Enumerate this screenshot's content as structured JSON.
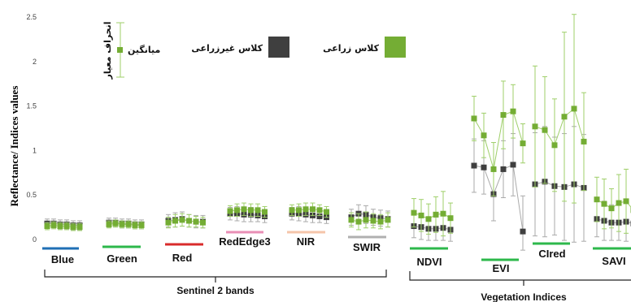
{
  "chart_data": {
    "type": "scatter",
    "ylabel": "Reflectance/ Indices values",
    "ylim": [
      -0.1,
      2.55
    ],
    "yticks": [
      "2.5",
      "2",
      "1.5",
      "1",
      "0.5",
      "0"
    ],
    "ytick_values": [
      2.5,
      2,
      1.5,
      1,
      0.5,
      0
    ],
    "legend": {
      "agri_label": "کلاس زراعی",
      "nonagri_label": "کلاس غیرزراعی",
      "mean_label": "میانگین",
      "sd_label": "انحراف معیار"
    },
    "colors": {
      "agri": "#74ad34",
      "nonagri": "#3f3f3f",
      "sd_line": "#9fcf6a",
      "gray_line": "#aaaaaa"
    },
    "sections": [
      {
        "label": "Sentinel 2 bands"
      },
      {
        "label": "Vegetation Indices"
      }
    ],
    "groups": [
      {
        "label": "Blue",
        "underline_color": "#1f6fb5",
        "series": [
          {
            "values": [
              0.15,
              0.16,
              0.15,
              0.15,
              0.14,
              0.14
            ],
            "err": [
              0.04,
              0.04,
              0.04,
              0.04,
              0.04,
              0.04
            ]
          },
          {
            "values": [
              0.18,
              0.18,
              0.17,
              0.17,
              0.16,
              0.16
            ],
            "err": [
              0.05,
              0.05,
              0.05,
              0.05,
              0.05,
              0.05
            ]
          }
        ]
      },
      {
        "label": "Green",
        "underline_color": "#2db84b",
        "series": [
          {
            "values": [
              0.17,
              0.18,
              0.17,
              0.17,
              0.16,
              0.16
            ],
            "err": [
              0.04,
              0.04,
              0.04,
              0.04,
              0.04,
              0.04
            ]
          },
          {
            "values": [
              0.19,
              0.19,
              0.18,
              0.18,
              0.17,
              0.17
            ],
            "err": [
              0.05,
              0.05,
              0.05,
              0.05,
              0.05,
              0.05
            ]
          }
        ]
      },
      {
        "label": "Red",
        "underline_color": "#d92b2b",
        "series": [
          {
            "values": [
              0.19,
              0.21,
              0.22,
              0.21,
              0.2,
              0.19
            ],
            "err": [
              0.06,
              0.07,
              0.07,
              0.07,
              0.06,
              0.06
            ]
          },
          {
            "values": [
              0.21,
              0.22,
              0.23,
              0.21,
              0.2,
              0.2
            ],
            "err": [
              0.07,
              0.08,
              0.08,
              0.07,
              0.07,
              0.07
            ]
          }
        ]
      },
      {
        "label": "RedEdge3",
        "underline_color": "#e98fb6",
        "series": [
          {
            "values": [
              0.32,
              0.33,
              0.34,
              0.33,
              0.33,
              0.31
            ],
            "err": [
              0.06,
              0.07,
              0.07,
              0.07,
              0.07,
              0.06
            ]
          },
          {
            "values": [
              0.29,
              0.29,
              0.28,
              0.28,
              0.27,
              0.26
            ],
            "err": [
              0.07,
              0.08,
              0.08,
              0.08,
              0.07,
              0.07
            ]
          }
        ]
      },
      {
        "label": "NIR",
        "underline_color": "#f5c5aa",
        "series": [
          {
            "values": [
              0.33,
              0.33,
              0.34,
              0.34,
              0.33,
              0.31
            ],
            "err": [
              0.06,
              0.07,
              0.07,
              0.07,
              0.06,
              0.06
            ]
          },
          {
            "values": [
              0.29,
              0.29,
              0.28,
              0.27,
              0.26,
              0.25
            ],
            "err": [
              0.07,
              0.08,
              0.08,
              0.08,
              0.07,
              0.07
            ]
          }
        ]
      },
      {
        "label": "SWIR",
        "underline_color": "#b0b0b0",
        "series": [
          {
            "values": [
              0.22,
              0.2,
              0.22,
              0.21,
              0.2,
              0.22
            ],
            "err": [
              0.08,
              0.09,
              0.09,
              0.08,
              0.08,
              0.08
            ]
          },
          {
            "values": [
              0.25,
              0.29,
              0.28,
              0.25,
              0.24,
              0.23
            ],
            "err": [
              0.09,
              0.1,
              0.1,
              0.09,
              0.09,
              0.09
            ]
          }
        ]
      },
      {
        "label": "NDVI",
        "underline_color": "#2db84b",
        "series": [
          {
            "values": [
              0.3,
              0.27,
              0.23,
              0.28,
              0.29,
              0.24
            ],
            "err": [
              0.16,
              0.18,
              0.17,
              0.2,
              0.25,
              0.17
            ]
          },
          {
            "values": [
              0.15,
              0.14,
              0.12,
              0.12,
              0.13,
              0.11
            ],
            "err": [
              0.13,
              0.14,
              0.13,
              0.13,
              0.14,
              0.13
            ]
          }
        ]
      },
      {
        "label": "EVI",
        "underline_color": "#2db84b",
        "series": [
          {
            "values": [
              1.36,
              1.17,
              0.79,
              1.4,
              1.44,
              1.08
            ],
            "err": [
              0.25,
              0.25,
              0.3,
              0.38,
              0.3,
              0.22
            ]
          },
          {
            "values": [
              0.83,
              0.81,
              0.51,
              0.79,
              0.84,
              0.09
            ],
            "err": [
              0.3,
              0.3,
              0.3,
              0.32,
              0.35,
              0.4
            ]
          }
        ]
      },
      {
        "label": "CIred",
        "underline_color": "#2db84b",
        "series": [
          {
            "values": [
              1.27,
              1.23,
              1.06,
              1.38,
              1.47,
              1.1
            ],
            "err": [
              0.68,
              0.6,
              0.52,
              0.95,
              1.06,
              0.55
            ]
          },
          {
            "values": [
              0.62,
              0.65,
              0.6,
              0.59,
              0.62,
              0.58
            ],
            "err": [
              0.58,
              0.62,
              0.55,
              0.6,
              0.65,
              0.6
            ]
          }
        ]
      },
      {
        "label": "SAVI",
        "underline_color": "#2db84b",
        "series": [
          {
            "values": [
              0.45,
              0.4,
              0.35,
              0.41,
              0.43,
              0.33
            ],
            "err": [
              0.25,
              0.28,
              0.22,
              0.32,
              0.36,
              0.27
            ]
          },
          {
            "values": [
              0.23,
              0.21,
              0.19,
              0.19,
              0.2,
              0.18
            ],
            "err": [
              0.2,
              0.22,
              0.2,
              0.2,
              0.22,
              0.2
            ]
          }
        ]
      }
    ]
  }
}
